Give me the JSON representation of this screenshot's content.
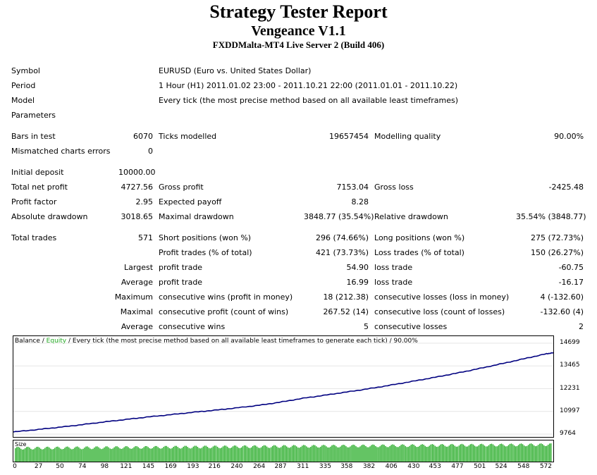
{
  "report": {
    "title": "Strategy Tester Report",
    "expert": "Vengeance V1.1",
    "server": "FXDDMalta-MT4 Live Server 2 (Build 406)"
  },
  "settings": {
    "symbol_label": "Symbol",
    "symbol_value": "EURUSD (Euro vs. United States Dollar)",
    "period_label": "Period",
    "period_value": "1 Hour (H1) 2011.01.02 23:00 - 2011.10.21 22:00 (2011.01.01 - 2011.10.22)",
    "model_label": "Model",
    "model_value": "Every tick (the most precise method based on all available least timeframes)",
    "parameters_label": "Parameters"
  },
  "stats": {
    "bars_label": "Bars in test",
    "bars_value": "6070",
    "ticks_label": "Ticks modelled",
    "ticks_value": "19657454",
    "quality_label": "Modelling quality",
    "quality_value": "90.00%",
    "mismatch_label": "Mismatched charts errors",
    "mismatch_value": "0",
    "deposit_label": "Initial deposit",
    "deposit_value": "10000.00",
    "net_label": "Total net profit",
    "net_value": "4727.56",
    "gross_profit_label": "Gross profit",
    "gross_profit_value": "7153.04",
    "gross_loss_label": "Gross loss",
    "gross_loss_value": "-2425.48",
    "pf_label": "Profit factor",
    "pf_value": "2.95",
    "ep_label": "Expected payoff",
    "ep_value": "8.28",
    "abs_dd_label": "Absolute drawdown",
    "abs_dd_value": "3018.65",
    "max_dd_label": "Maximal drawdown",
    "max_dd_value": "3848.77 (35.54%)",
    "rel_dd_label": "Relative drawdown",
    "rel_dd_value": "35.54% (3848.77)",
    "trades_label": "Total trades",
    "trades_value": "571",
    "short_label": "Short positions (won %)",
    "short_value": "296 (74.66%)",
    "long_label": "Long positions (won %)",
    "long_value": "275 (72.73%)",
    "pt_label": "Profit trades (% of total)",
    "pt_value": "421 (73.73%)",
    "lt_label": "Loss trades (% of total)",
    "lt_value": "150 (26.27%)",
    "largest_label": "Largest",
    "largest_pt_label": "profit trade",
    "largest_pt_value": "54.90",
    "largest_lt_label": "loss trade",
    "largest_lt_value": "-60.75",
    "average_label": "Average",
    "average_pt_label": "profit trade",
    "average_pt_value": "16.99",
    "average_lt_label": "loss trade",
    "average_lt_value": "-16.17",
    "maximum_label": "Maximum",
    "max_cw_label": "consecutive wins (profit in money)",
    "max_cw_value": "18 (212.38)",
    "max_cl_label": "consecutive losses (loss in money)",
    "max_cl_value": "4 (-132.60)",
    "maximal_label": "Maximal",
    "mxl_cp_label": "consecutive profit (count of wins)",
    "mxl_cp_value": "267.52 (14)",
    "mxl_cl_label": "consecutive loss (count of losses)",
    "mxl_cl_value": "-132.60 (4)",
    "avg2_label": "Average",
    "avg_cw_label": "consecutive wins",
    "avg_cw_value": "5",
    "avg_cl_label": "consecutive losses",
    "avg_cl_value": "2"
  },
  "chart_data": {
    "type": "line",
    "legend_balance": "Balance",
    "legend_sep": " / ",
    "legend_equity": "Equity",
    "legend_rest": " / Every tick (the most precise method based on all available least timeframes to generate each tick) / 90.00%",
    "x_ticks": [
      "0",
      "27",
      "50",
      "74",
      "98",
      "121",
      "145",
      "169",
      "193",
      "216",
      "240",
      "264",
      "287",
      "311",
      "335",
      "358",
      "382",
      "406",
      "430",
      "453",
      "477",
      "501",
      "524",
      "548",
      "572"
    ],
    "y_ticks": [
      "14699",
      "13465",
      "12231",
      "10997",
      "9764"
    ],
    "ylim": [
      9764,
      14699
    ],
    "xlim": [
      0,
      580
    ],
    "series": [
      {
        "name": "Balance",
        "color": "#000080",
        "x": [
          0,
          27,
          50,
          74,
          98,
          121,
          145,
          169,
          193,
          216,
          240,
          264,
          287,
          311,
          335,
          358,
          382,
          406,
          430,
          453,
          477,
          501,
          524,
          548,
          572,
          580
        ],
        "y": [
          9880,
          10020,
          10140,
          10280,
          10430,
          10560,
          10700,
          10820,
          10950,
          11060,
          11190,
          11330,
          11500,
          11710,
          11880,
          12050,
          12230,
          12430,
          12640,
          12850,
          13080,
          13330,
          13580,
          13850,
          14120,
          14180
        ]
      }
    ],
    "size_label": "Size",
    "size_color": "#22aa22"
  }
}
